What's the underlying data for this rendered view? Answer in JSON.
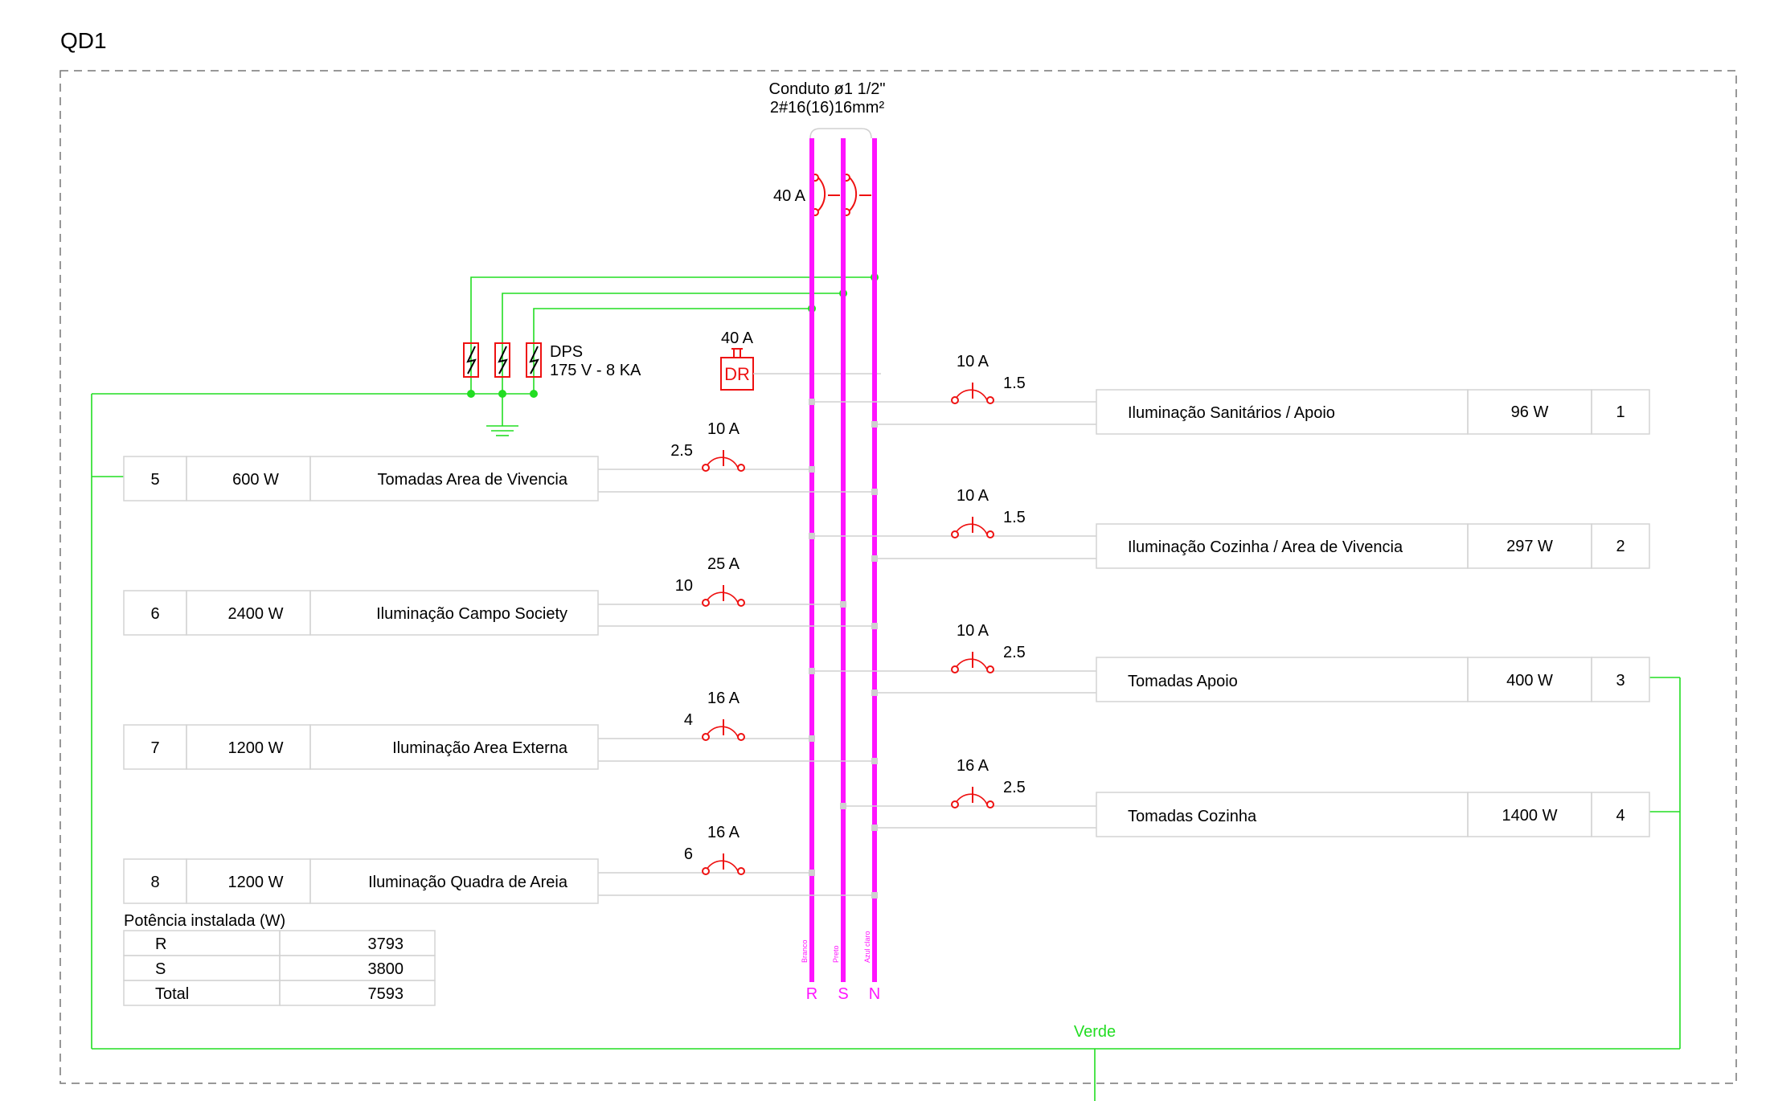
{
  "panel_title": "QD1",
  "conduit": {
    "line1": "Conduto ø1 1/2\"",
    "line2": "2#16(16)16mm²"
  },
  "main_breaker": "40 A",
  "dps": {
    "line1": "DPS",
    "line2": "175 V - 8 KA"
  },
  "dr": {
    "rating": "40 A",
    "label": "DR"
  },
  "bus_labels": {
    "r": "R",
    "s": "S",
    "n": "N"
  },
  "wire_colors": {
    "r": "Branco",
    "s": "Preto",
    "n": "Azul claro"
  },
  "ground_label": "Verde",
  "circuits_right": [
    {
      "id": "1",
      "name": "Iluminação Sanitários / Apoio",
      "power": "96 W",
      "breaker": "10 A",
      "section": "1.5"
    },
    {
      "id": "2",
      "name": "Iluminação Cozinha / Area de Vivencia",
      "power": "297 W",
      "breaker": "10 A",
      "section": "1.5"
    },
    {
      "id": "3",
      "name": "Tomadas Apoio",
      "power": "400 W",
      "breaker": "10 A",
      "section": "2.5"
    },
    {
      "id": "4",
      "name": "Tomadas Cozinha",
      "power": "1400 W",
      "breaker": "16 A",
      "section": "2.5"
    }
  ],
  "circuits_left": [
    {
      "id": "5",
      "name": "Tomadas Area de Vivencia",
      "power": "600 W",
      "breaker": "10 A",
      "section": "2.5"
    },
    {
      "id": "6",
      "name": "Iluminação Campo Society",
      "power": "2400 W",
      "breaker": "25 A",
      "section": "10"
    },
    {
      "id": "7",
      "name": "Iluminação Area Externa",
      "power": "1200 W",
      "breaker": "16 A",
      "section": "4"
    },
    {
      "id": "8",
      "name": "Iluminação Quadra de Areia",
      "power": "1200 W",
      "breaker": "16 A",
      "section": "6"
    }
  ],
  "power_table": {
    "title": "Potência instalada (W)",
    "rows": [
      {
        "label": "R",
        "value": "3793"
      },
      {
        "label": "S",
        "value": "3800"
      },
      {
        "label": "Total",
        "value": "7593"
      }
    ]
  },
  "colors": {
    "bus": "#ff14ff",
    "ground": "#22dd22",
    "device": "#ee1111",
    "wire": "#d0d0d0"
  }
}
